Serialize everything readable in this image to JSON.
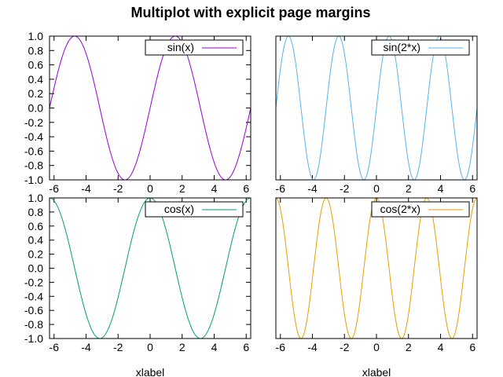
{
  "page": {
    "title": "Multiplot with explicit page margins"
  },
  "chart_data": [
    {
      "type": "line",
      "function": "sin(x)",
      "series": [
        {
          "name": "sin(x)",
          "color": "#9400d3"
        }
      ],
      "legend": "top-right",
      "xlim": [
        -6.283,
        6.283
      ],
      "ylim": [
        -1.0,
        1.0
      ],
      "x_ticks": [
        "-6",
        "-4",
        "-2",
        "0",
        "2",
        "4",
        "6"
      ],
      "y_ticks": [
        "-1.0",
        "-0.8",
        "-0.6",
        "-0.4",
        "-0.2",
        "0.0",
        "0.2",
        "0.4",
        "0.6",
        "0.8",
        "1.0"
      ],
      "show_y_tick_labels": true,
      "xlabel": "",
      "grid": false
    },
    {
      "type": "line",
      "function": "sin(2*x)",
      "series": [
        {
          "name": "sin(2*x)",
          "color": "#56b4e9"
        }
      ],
      "legend": "top-right",
      "xlim": [
        -6.283,
        6.283
      ],
      "ylim": [
        -1.0,
        1.0
      ],
      "x_ticks": [
        "-6",
        "-4",
        "-2",
        "0",
        "2",
        "4",
        "6"
      ],
      "y_ticks": [],
      "show_y_tick_labels": false,
      "xlabel": "",
      "grid": false
    },
    {
      "type": "line",
      "function": "cos(x)",
      "series": [
        {
          "name": "cos(x)",
          "color": "#009e73"
        }
      ],
      "legend": "top-right",
      "xlim": [
        -6.283,
        6.283
      ],
      "ylim": [
        -1.0,
        1.0
      ],
      "x_ticks": [
        "-6",
        "-4",
        "-2",
        "0",
        "2",
        "4",
        "6"
      ],
      "y_ticks": [
        "-1.0",
        "-0.8",
        "-0.6",
        "-0.4",
        "-0.2",
        "0.0",
        "0.2",
        "0.4",
        "0.6",
        "0.8",
        "1.0"
      ],
      "show_y_tick_labels": true,
      "xlabel": "xlabel",
      "grid": false
    },
    {
      "type": "line",
      "function": "cos(2*x)",
      "series": [
        {
          "name": "cos(2*x)",
          "color": "#e69f00"
        }
      ],
      "legend": "top-right",
      "xlim": [
        -6.283,
        6.283
      ],
      "ylim": [
        -1.0,
        1.0
      ],
      "x_ticks": [
        "-6",
        "-4",
        "-2",
        "0",
        "2",
        "4",
        "6"
      ],
      "y_ticks": [],
      "show_y_tick_labels": false,
      "xlabel": "xlabel",
      "grid": false
    }
  ]
}
